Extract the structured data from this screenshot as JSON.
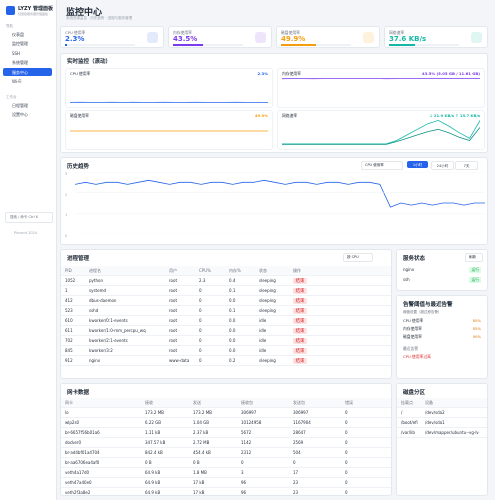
{
  "sidebar": {
    "brand": "LYZY 管理面板",
    "tagline": "轻量级服务器管理面板",
    "groups": [
      {
        "title": "导航",
        "items": [
          {
            "label": "仪表盘"
          },
          {
            "label": "监控管理"
          },
          {
            "label": "SSH"
          },
          {
            "label": "系统管理"
          },
          {
            "label": "服务中心",
            "active": true
          },
          {
            "label": "Wi-Fi"
          }
        ]
      },
      {
        "title": "工作台",
        "items": [
          {
            "label": "日程管理"
          },
          {
            "label": "设置中心"
          }
        ]
      }
    ],
    "search": "搜索 / 命令 Ctrl K",
    "footer": "Pinvent 2024"
  },
  "header": {
    "title": "监控中心",
    "subtitle": "系统资源监控 · 历史趋势 · 进程与服务管理"
  },
  "stats": [
    {
      "label": "CPU 使用率",
      "value_label": "2.3%",
      "progress": 2.3,
      "color": "#2563eb"
    },
    {
      "label": "内存使用率",
      "value_label": "43.5%",
      "progress": 43.5,
      "color": "#7c3aed"
    },
    {
      "label": "磁盘使用率",
      "value_label": "49.9%",
      "progress": 49.9,
      "color": "#f59e0b"
    },
    {
      "label": "网络速率",
      "value_label": "37.6 KB/s",
      "progress": 37.6,
      "color": "#14b8a6"
    }
  ],
  "realtime": {
    "title": "实时监控（滚动）",
    "charts": [
      {
        "title": "CPU 使用率",
        "value_label": "2.3%",
        "ylim": [
          0,
          100
        ],
        "series": [
          {
            "color": "#2563eb",
            "values": [
              2.1,
              2.4,
              2.2,
              2.0,
              2.5,
              2.3,
              2.6,
              2.2,
              2.1,
              2.4,
              2.3,
              2.2,
              2.5,
              2.3,
              2.1,
              2.2,
              2.4,
              2.3,
              2.2,
              2.3
            ]
          }
        ]
      },
      {
        "title": "内存使用率",
        "value_label": "43.5% (5.05 GB / 11.61 GB)",
        "ylim": [
          0,
          50
        ],
        "series": [
          {
            "color": "#7c3aed",
            "values": [
              43.4,
              43.5,
              43.5,
              43.4,
              43.5,
              43.5,
              43.6,
              43.5,
              43.5,
              43.5,
              43.4,
              43.5,
              43.5,
              43.5,
              43.5,
              43.6,
              43.5,
              43.5,
              43.5,
              43.5
            ]
          }
        ]
      },
      {
        "title": "磁盘使用率",
        "value_label": "49.9%",
        "ylim": [
          0,
          100
        ],
        "series": [
          {
            "color": "#f59e0b",
            "values": [
              49.9,
              49.9,
              49.9,
              49.9,
              49.9,
              49.9,
              49.9,
              49.9,
              49.9,
              49.9,
              49.9,
              49.9,
              49.9,
              49.9,
              49.9,
              49.9,
              49.9,
              49.9,
              49.9,
              49.9
            ]
          }
        ]
      },
      {
        "title": "网络速率",
        "value_label": "↓ 21.9 KB/s ↑ 15.7 KB/s",
        "ylim": [
          0,
          25
        ],
        "series": [
          {
            "color": "#14b8a6",
            "values": [
              1,
              1,
              1,
              1,
              1,
              1,
              1,
              1,
              1,
              1,
              1,
              4,
              9,
              14,
              19,
              22,
              17,
              11,
              6,
              21.9
            ]
          },
          {
            "color": "#0d9488",
            "values": [
              0.5,
              0.5,
              0.5,
              0.5,
              0.5,
              0.5,
              0.5,
              0.5,
              0.5,
              0.5,
              0.5,
              3,
              6,
              9,
              12,
              14,
              11,
              7,
              4,
              15.7
            ]
          }
        ]
      }
    ]
  },
  "history": {
    "title": "历史趋势",
    "select": "CPU 使用率",
    "ranges": [
      {
        "label": "1小时",
        "active": true
      },
      {
        "label": "24小时"
      },
      {
        "label": "7天"
      }
    ],
    "ylim": [
      0,
      3
    ],
    "yticks": [
      0,
      1,
      2,
      3
    ],
    "series": [
      {
        "color": "#2563eb",
        "values": [
          2.4,
          2.5,
          2.4,
          2.5,
          2.5,
          2.4,
          2.5,
          2.6,
          2.5,
          2.4,
          2.5,
          2.5,
          2.4,
          2.5,
          2.5,
          2.4,
          2.5,
          2.5,
          2.6,
          2.5,
          2.4,
          2.5,
          2.5,
          2.4,
          2.5,
          2.5,
          2.4,
          2.5,
          2.5,
          2.4,
          1.3,
          1.5,
          1.4,
          1.5,
          1.4,
          1.5,
          1.5,
          1.4,
          1.5,
          1.5
        ]
      }
    ]
  },
  "processes": {
    "title": "进程管理",
    "sort": "按 CPU",
    "action": "结束",
    "columns": [
      "PID",
      "进程名",
      "用户",
      "CPU%",
      "内存%",
      "状态",
      "操作"
    ],
    "rows": [
      [
        "1052",
        "python",
        "root",
        "2.3",
        "0.4",
        "sleeping"
      ],
      [
        "1",
        "systemd",
        "root",
        "0",
        "0.1",
        "sleeping"
      ],
      [
        "412",
        "dbus-daemon",
        "root",
        "0",
        "0.0",
        "sleeping"
      ],
      [
        "523",
        "sshd",
        "root",
        "0",
        "0.1",
        "sleeping"
      ],
      [
        "610",
        "kworker/0:1-events",
        "root",
        "0",
        "0.0",
        "idle"
      ],
      [
        "611",
        "kworker/1:0-mm_percpu_wq",
        "root",
        "0",
        "0.0",
        "idle"
      ],
      [
        "702",
        "kworker/2:1-events",
        "root",
        "0",
        "0.0",
        "idle"
      ],
      [
        "845",
        "kworker/3:2",
        "root",
        "0",
        "0.0",
        "idle"
      ],
      [
        "912",
        "nginx",
        "www-data",
        "0",
        "0.2",
        "sleeping"
      ]
    ]
  },
  "services": {
    "title": "服务状态",
    "refresh": "刷新",
    "items": [
      {
        "name": "nginx",
        "status": "运行"
      },
      {
        "name": "ssh",
        "status": "运行"
      }
    ]
  },
  "alerts": {
    "title": "告警阈值与最近告警",
    "subtitle": "阈值设置（超过即告警）",
    "thresholds": [
      {
        "label": "CPU 使用率",
        "value": "80%"
      },
      {
        "label": "内存使用率",
        "value": "85%"
      },
      {
        "label": "磁盘使用率",
        "value": "90%"
      }
    ],
    "recent_title": "最近告警",
    "recent": [
      "CPU 使用率过高"
    ]
  },
  "network": {
    "title": "网卡数据",
    "columns": [
      "网卡",
      "接收",
      "发送",
      "接收包",
      "发送包",
      "错误"
    ],
    "rows": [
      [
        "lo",
        "173.2 MB",
        "173.2 MB",
        "306997",
        "306997",
        "0"
      ],
      [
        "wlp2s0",
        "6.22 GB",
        "1.04 GB",
        "10124958",
        "1167904",
        "0"
      ],
      [
        "br-6657f56b01a6",
        "1.11 kB",
        "2.37 kB",
        "5672",
        "28647",
        "0"
      ],
      [
        "docker0",
        "347.57 kB",
        "2.72 MB",
        "1142",
        "2569",
        "0"
      ],
      [
        "br-ad4bf01a4704",
        "842.4 kB",
        "454.4 kB",
        "2312",
        "504",
        "0"
      ],
      [
        "br-aa6706ea4af0",
        "0 B",
        "0 B",
        "0",
        "0",
        "0"
      ],
      [
        "veth4a17d0",
        "64.9 kB",
        "1.8 MB",
        "3",
        "17",
        "0"
      ],
      [
        "veth47a40e0",
        "64.9 kB",
        "17 kB",
        "96",
        "23",
        "0"
      ],
      [
        "veth2f3a8e2",
        "64.9 kB",
        "17 kB",
        "96",
        "23",
        "0"
      ]
    ]
  },
  "disks": {
    "title": "磁盘分区",
    "columns": [
      "挂载点",
      "设备"
    ],
    "rows": [
      [
        "/",
        "/dev/sda2"
      ],
      [
        "/boot/efi",
        "/dev/sda1"
      ],
      [
        "/var/lib",
        "/dev/mapper/ubuntu--vg-lv"
      ]
    ]
  }
}
